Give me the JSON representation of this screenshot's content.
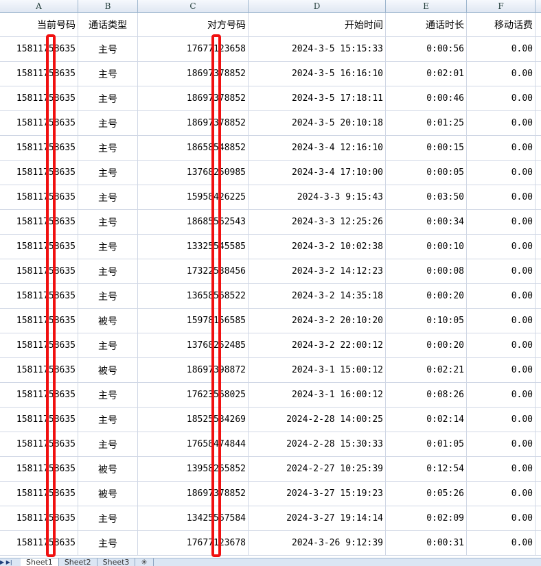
{
  "columns": [
    "A",
    "B",
    "C",
    "D",
    "E",
    "F"
  ],
  "headers": [
    "当前号码",
    "通话类型",
    "对方号码",
    "开始时间",
    "通话时长",
    "移动话费"
  ],
  "rows": [
    [
      "15811758635",
      "主号",
      "17677123658",
      "2024-3-5 15:15:33",
      "0:00:56",
      "0.00"
    ],
    [
      "15811758635",
      "主号",
      "18697378852",
      "2024-3-5 16:16:10",
      "0:02:01",
      "0.00"
    ],
    [
      "15811758635",
      "主号",
      "18697378852",
      "2024-3-5 17:18:11",
      "0:00:46",
      "0.00"
    ],
    [
      "15811758635",
      "主号",
      "18697378852",
      "2024-3-5 20:10:18",
      "0:01:25",
      "0.00"
    ],
    [
      "15811758635",
      "主号",
      "18658548852",
      "2024-3-4 12:16:10",
      "0:00:15",
      "0.00"
    ],
    [
      "15811758635",
      "主号",
      "13768250985",
      "2024-3-4 17:10:00",
      "0:00:05",
      "0.00"
    ],
    [
      "15811758635",
      "主号",
      "15958426225",
      "2024-3-3 9:15:43",
      "0:03:50",
      "0.00"
    ],
    [
      "15811758635",
      "主号",
      "18685562543",
      "2024-3-3 12:25:26",
      "0:00:34",
      "0.00"
    ],
    [
      "15811758635",
      "主号",
      "13325545585",
      "2024-3-2 10:02:38",
      "0:00:10",
      "0.00"
    ],
    [
      "15811758635",
      "主号",
      "17322538456",
      "2024-3-2 14:12:23",
      "0:00:08",
      "0.00"
    ],
    [
      "15811758635",
      "主号",
      "13658568522",
      "2024-3-2 14:35:18",
      "0:00:20",
      "0.00"
    ],
    [
      "15811758635",
      "被号",
      "15978156585",
      "2024-3-2 20:10:20",
      "0:10:05",
      "0.00"
    ],
    [
      "15811758635",
      "主号",
      "13768252485",
      "2024-3-2 22:00:12",
      "0:00:20",
      "0.00"
    ],
    [
      "15811758635",
      "被号",
      "18697398872",
      "2024-3-1 15:00:12",
      "0:02:21",
      "0.00"
    ],
    [
      "15811758635",
      "主号",
      "17623568025",
      "2024-3-1 16:00:12",
      "0:08:26",
      "0.00"
    ],
    [
      "15811758635",
      "主号",
      "18525534269",
      "2024-2-28 14:00:25",
      "0:02:14",
      "0.00"
    ],
    [
      "15811758635",
      "主号",
      "17658474844",
      "2024-2-28 15:30:33",
      "0:01:05",
      "0.00"
    ],
    [
      "15811758635",
      "被号",
      "13958265852",
      "2024-2-27 10:25:39",
      "0:12:54",
      "0.00"
    ],
    [
      "15811758635",
      "被号",
      "18697378852",
      "2024-3-27 15:19:23",
      "0:05:26",
      "0.00"
    ],
    [
      "15811758635",
      "主号",
      "13425567584",
      "2024-3-27 19:14:14",
      "0:02:09",
      "0.00"
    ],
    [
      "15811758635",
      "主号",
      "17677123678",
      "2024-3-26 9:12:39",
      "0:00:31",
      "0.00"
    ]
  ],
  "sheet_tabs": [
    "Sheet1",
    "Sheet2",
    "Sheet3"
  ],
  "redaction_color": "#f01010"
}
